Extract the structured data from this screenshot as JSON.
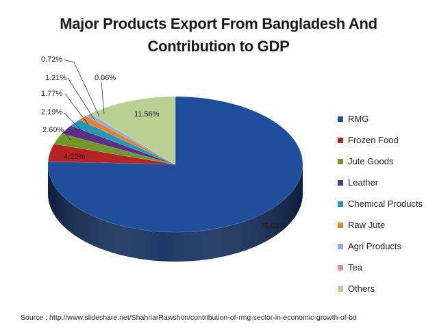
{
  "chart_data": {
    "type": "pie",
    "title_lines": [
      "Major Products Export From Bangladesh And",
      "Contribution to GDP"
    ],
    "legend_position": "right",
    "slices": [
      {
        "name": "RMG",
        "value": 75.65,
        "label": "75.65%",
        "color": "#1f4e9c"
      },
      {
        "name": "Frozen Food",
        "value": 4.22,
        "label": "4.22%",
        "color": "#b52323"
      },
      {
        "name": "Jute Goods",
        "value": 2.6,
        "label": "2.60%",
        "color": "#6f9a2a"
      },
      {
        "name": "Leather",
        "value": 2.19,
        "label": "2.19%",
        "color": "#5b2e87"
      },
      {
        "name": "Chemical Products",
        "value": 1.77,
        "label": "1.77%",
        "color": "#1f9bb8"
      },
      {
        "name": "Raw Jute",
        "value": 1.21,
        "label": "1.21%",
        "color": "#e5812a"
      },
      {
        "name": "Agri Products",
        "value": 0.72,
        "label": "0.72%",
        "color": "#8fb0dc"
      },
      {
        "name": "Tea",
        "value": 0.06,
        "label": "0.06%",
        "color": "#d99593"
      },
      {
        "name": "Others",
        "value": 11.56,
        "label": "11.56%",
        "color": "#b8d092"
      }
    ]
  },
  "source_note": "Source : http://www.slideshare.net/ShahriarRawshon/contribution-of-rmg-sector-in-economic-growth-of-bd"
}
